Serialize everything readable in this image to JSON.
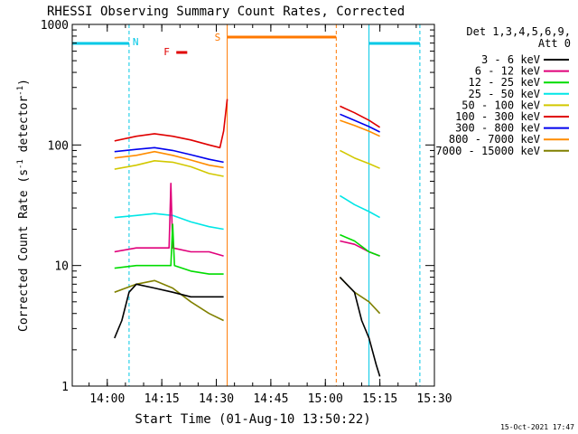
{
  "chart_data": {
    "type": "line",
    "title": "RHESSI Observing Summary Count Rates, Corrected",
    "xlabel": "Start Time (01-Aug-10 13:50:22)",
    "ylabel": "Corrected Count Rate (s⁻¹ detector⁻¹)",
    "ylabel_parts": [
      "Corrected Count Rate (s",
      "-1",
      " detector",
      "-1",
      ")"
    ],
    "y_scale": "log",
    "ylim": [
      1,
      1000
    ],
    "xlim": [
      "13:50:22",
      "15:30:00"
    ],
    "x_ticks": [
      "14:00",
      "14:15",
      "14:30",
      "14:45",
      "15:00",
      "15:15",
      "15:30"
    ],
    "y_ticks": [
      "1",
      "10",
      "100",
      "1000"
    ],
    "footer_date": "15-Oct-2021 17:47",
    "legend": {
      "header": [
        "Det 1,3,4,5,6,9,",
        "Att 0"
      ],
      "entries": [
        {
          "label": "3 - 6 keV",
          "color": "#000000"
        },
        {
          "label": "6 - 12 keV",
          "color": "#e0007a"
        },
        {
          "label": "12 - 25 keV",
          "color": "#00dc00"
        },
        {
          "label": "25 - 50 keV",
          "color": "#00e6e6"
        },
        {
          "label": "50 - 100 keV",
          "color": "#d2c800"
        },
        {
          "label": "100 - 300 keV",
          "color": "#e00000"
        },
        {
          "label": "300 - 800 keV",
          "color": "#0000ee"
        },
        {
          "label": "800 - 7000 keV",
          "color": "#ff8c00"
        },
        {
          "label": "7000 - 15000 keV",
          "color": "#808000"
        }
      ]
    },
    "flags": [
      {
        "label": "N",
        "color": "#00c8e6",
        "type": "night",
        "intervals": [
          [
            "13:50:22",
            "14:06:00"
          ],
          [
            "15:12:00",
            "15:26:00"
          ]
        ]
      },
      {
        "label": "F",
        "color": "#e00000",
        "type": "flare",
        "intervals": [
          [
            "14:19:00",
            "14:22:00"
          ]
        ]
      },
      {
        "label": "S",
        "color": "#ff7800",
        "type": "saa",
        "intervals": [
          [
            "14:33:00",
            "15:03:00"
          ]
        ]
      }
    ],
    "series": [
      {
        "label": "100 - 300 keV",
        "color": "#e00000",
        "segments": [
          {
            "x": [
              "14:02",
              "14:08",
              "14:13",
              "14:18",
              "14:23",
              "14:28",
              "14:31",
              "14:32",
              "14:33"
            ],
            "y": [
              108,
              118,
              124,
              118,
              110,
              100,
              95,
              130,
              240
            ]
          },
          {
            "x": [
              "15:04",
              "15:08",
              "15:12",
              "15:15"
            ],
            "y": [
              210,
              185,
              160,
              140
            ]
          }
        ]
      },
      {
        "label": "300 - 800 keV",
        "color": "#0000ee",
        "segments": [
          {
            "x": [
              "14:02",
              "14:08",
              "14:13",
              "14:18",
              "14:23",
              "14:28",
              "14:32"
            ],
            "y": [
              88,
              92,
              95,
              90,
              83,
              76,
              72
            ]
          },
          {
            "x": [
              "15:04",
              "15:08",
              "15:12",
              "15:15"
            ],
            "y": [
              180,
              160,
              142,
              128
            ]
          }
        ]
      },
      {
        "label": "800 - 7000 keV",
        "color": "#ff8c00",
        "segments": [
          {
            "x": [
              "14:02",
              "14:08",
              "14:13",
              "14:18",
              "14:23",
              "14:28",
              "14:32"
            ],
            "y": [
              78,
              82,
              88,
              82,
              75,
              68,
              65
            ]
          },
          {
            "x": [
              "15:04",
              "15:08",
              "15:12",
              "15:15"
            ],
            "y": [
              160,
              145,
              130,
              118
            ]
          }
        ]
      },
      {
        "label": "50 - 100 keV",
        "color": "#d2c800",
        "segments": [
          {
            "x": [
              "14:02",
              "14:08",
              "14:13",
              "14:18",
              "14:23",
              "14:28",
              "14:32"
            ],
            "y": [
              63,
              68,
              74,
              72,
              66,
              58,
              55
            ]
          },
          {
            "x": [
              "15:04",
              "15:08",
              "15:12",
              "15:15"
            ],
            "y": [
              90,
              78,
              70,
              64
            ]
          }
        ]
      },
      {
        "label": "25 - 50 keV",
        "color": "#00e6e6",
        "segments": [
          {
            "x": [
              "14:02",
              "14:08",
              "14:13",
              "14:18",
              "14:23",
              "14:28",
              "14:32"
            ],
            "y": [
              25,
              26,
              27,
              26,
              23,
              21,
              20
            ]
          },
          {
            "x": [
              "15:04",
              "15:08",
              "15:12",
              "15:15"
            ],
            "y": [
              38,
              32,
              28,
              25
            ]
          }
        ]
      },
      {
        "label": "6 - 12 keV",
        "color": "#e0007a",
        "segments": [
          {
            "x": [
              "14:02",
              "14:08",
              "14:13",
              "14:17",
              "14:17.5",
              "14:18",
              "14:23",
              "14:28",
              "14:32"
            ],
            "y": [
              13,
              14,
              14,
              14,
              48,
              14,
              13,
              13,
              12
            ]
          },
          {
            "x": [
              "15:04",
              "15:08",
              "15:12",
              "15:15"
            ],
            "y": [
              16,
              15,
              13,
              12
            ]
          }
        ]
      },
      {
        "label": "12 - 25 keV",
        "color": "#00dc00",
        "segments": [
          {
            "x": [
              "14:02",
              "14:08",
              "14:13",
              "14:17.5",
              "14:18",
              "14:18.5",
              "14:23",
              "14:28",
              "14:32"
            ],
            "y": [
              9.5,
              10,
              10,
              10,
              22,
              10,
              9,
              8.5,
              8.5
            ]
          },
          {
            "x": [
              "15:04",
              "15:08",
              "15:12",
              "15:15"
            ],
            "y": [
              18,
              16,
              13,
              12
            ]
          }
        ]
      },
      {
        "label": "7000 - 15000 keV",
        "color": "#808000",
        "segments": [
          {
            "x": [
              "14:02",
              "14:08",
              "14:13",
              "14:18",
              "14:23",
              "14:28",
              "14:32"
            ],
            "y": [
              6,
              7,
              7.5,
              6.5,
              5,
              4,
              3.5
            ]
          },
          {
            "x": [
              "15:04",
              "15:08",
              "15:12",
              "15:15"
            ],
            "y": [
              8,
              6,
              5,
              4
            ]
          }
        ]
      },
      {
        "label": "3 - 6 keV",
        "color": "#000000",
        "segments": [
          {
            "x": [
              "14:02",
              "14:04",
              "14:06",
              "14:08",
              "14:13",
              "14:18",
              "14:23",
              "14:28",
              "14:32"
            ],
            "y": [
              2.5,
              3.5,
              6,
              7,
              6.5,
              6,
              5.5,
              5.5,
              5.5
            ]
          },
          {
            "x": [
              "15:04",
              "15:08",
              "15:10",
              "15:12",
              "15:14",
              "15:15"
            ],
            "y": [
              8,
              6,
              3.5,
              2.5,
              1.5,
              1.2
            ]
          }
        ]
      }
    ]
  }
}
